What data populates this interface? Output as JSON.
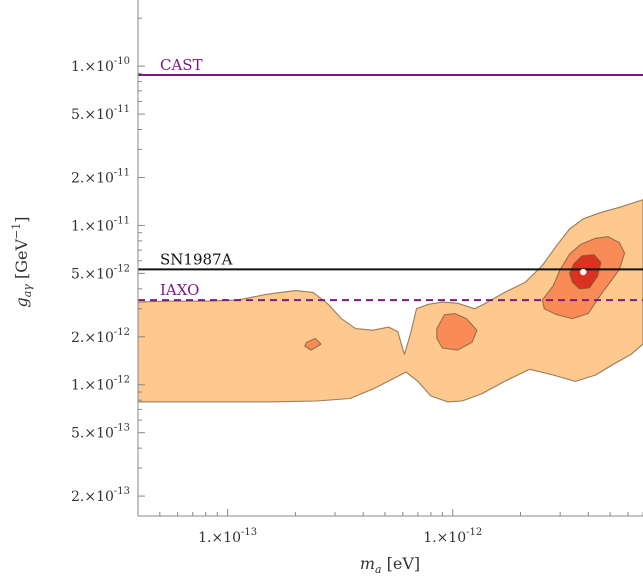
{
  "chart_data": {
    "type": "contour",
    "xlabel": "m_a [eV]",
    "ylabel": "g_aγ [GeV^-1]",
    "x_scale": "log",
    "y_scale": "log",
    "xlim": [
      4e-14,
      7e-12
    ],
    "ylim": [
      1.5e-13,
      2.6e-10
    ],
    "x_ticks": [
      {
        "value": 1e-13,
        "mantissa": "1.",
        "exponent": "-13"
      },
      {
        "value": 1e-12,
        "mantissa": "1.",
        "exponent": "-12"
      }
    ],
    "y_ticks": [
      {
        "value": 1e-10,
        "mantissa": "1.",
        "exponent": "-10"
      },
      {
        "value": 5e-11,
        "mantissa": "5.",
        "exponent": "-11"
      },
      {
        "value": 2e-11,
        "mantissa": "2.",
        "exponent": "-11"
      },
      {
        "value": 1e-11,
        "mantissa": "1.",
        "exponent": "-11"
      },
      {
        "value": 5e-12,
        "mantissa": "5.",
        "exponent": "-12"
      },
      {
        "value": 2e-12,
        "mantissa": "2.",
        "exponent": "-12"
      },
      {
        "value": 1e-12,
        "mantissa": "1.",
        "exponent": "-12"
      },
      {
        "value": 5e-13,
        "mantissa": "5.",
        "exponent": "-13"
      },
      {
        "value": 2e-13,
        "mantissa": "2.",
        "exponent": "-13"
      }
    ],
    "reference_lines": [
      {
        "label": "CAST",
        "y": 8.8e-11,
        "color": "#7b1a80",
        "style": "solid"
      },
      {
        "label": "SN1987A",
        "y": 5.3e-12,
        "color": "#111111",
        "style": "solid"
      },
      {
        "label": "IAXO",
        "y": 3.4e-12,
        "color": "#7b1a80",
        "style": "dashed"
      }
    ],
    "regions": [
      {
        "level": "outer",
        "color": "#fdc98f",
        "points": [
          [
            4e-14,
            3.3e-12
          ],
          [
            5.5e-14,
            3.35e-12
          ],
          [
            8e-14,
            3.35e-12
          ],
          [
            1.1e-13,
            3.4e-12
          ],
          [
            1.5e-13,
            3.7e-12
          ],
          [
            2e-13,
            3.9e-12
          ],
          [
            2.4e-13,
            3.8e-12
          ],
          [
            2.8e-13,
            3.2e-12
          ],
          [
            3.2e-13,
            2.6e-12
          ],
          [
            3.7e-13,
            2.25e-12
          ],
          [
            4.4e-13,
            2.2e-12
          ],
          [
            5.2e-13,
            2.3e-12
          ],
          [
            5.7e-13,
            2.15e-12
          ],
          [
            6.1e-13,
            1.55e-12
          ],
          [
            6.5e-13,
            2.1e-12
          ],
          [
            6.9e-13,
            3e-12
          ],
          [
            7.8e-13,
            3.2e-12
          ],
          [
            9e-13,
            3.3e-12
          ],
          [
            1.05e-12,
            3.25e-12
          ],
          [
            1.25e-12,
            3e-12
          ],
          [
            1.4e-12,
            3.25e-12
          ],
          [
            1.7e-12,
            3.8e-12
          ],
          [
            2.1e-12,
            4.4e-12
          ],
          [
            2.5e-12,
            5.6e-12
          ],
          [
            2.9e-12,
            7.5e-12
          ],
          [
            3.3e-12,
            9.5e-12
          ],
          [
            3.8e-12,
            1.1e-11
          ],
          [
            4.5e-12,
            1.2e-11
          ],
          [
            5.5e-12,
            1.3e-11
          ],
          [
            7e-12,
            1.45e-11
          ],
          [
            7e-12,
            1.8e-12
          ],
          [
            6.2e-12,
            1.55e-12
          ],
          [
            5.2e-12,
            1.35e-12
          ],
          [
            4.3e-12,
            1.15e-12
          ],
          [
            3.5e-12,
            1.05e-12
          ],
          [
            2.8e-12,
            1.15e-12
          ],
          [
            2.2e-12,
            1.25e-12
          ],
          [
            1.7e-12,
            1.05e-12
          ],
          [
            1.35e-12,
            8.8e-13
          ],
          [
            1.1e-12,
            7.9e-13
          ],
          [
            9.5e-13,
            7.8e-13
          ],
          [
            8e-13,
            8.5e-13
          ],
          [
            7e-13,
            1.05e-12
          ],
          [
            6.2e-13,
            1.2e-12
          ],
          [
            5.5e-13,
            1.1e-12
          ],
          [
            4.5e-13,
            9.5e-13
          ],
          [
            3.5e-13,
            8.2e-13
          ],
          [
            2.5e-13,
            7.9e-13
          ],
          [
            1.5e-13,
            7.8e-13
          ],
          [
            8e-14,
            7.8e-13
          ],
          [
            4e-14,
            7.8e-13
          ]
        ]
      },
      {
        "level": "middle",
        "color": "#f98c56",
        "points": [
          [
            2.25e-13,
            1.85e-12
          ],
          [
            2.45e-13,
            1.95e-12
          ],
          [
            2.6e-13,
            1.8e-12
          ],
          [
            2.35e-13,
            1.65e-12
          ],
          [
            2.2e-13,
            1.75e-12
          ]
        ]
      },
      {
        "level": "middle",
        "color": "#f98c56",
        "points": [
          [
            8.5e-13,
            2.25e-12
          ],
          [
            9.2e-13,
            2.75e-12
          ],
          [
            1.02e-12,
            2.8e-12
          ],
          [
            1.15e-12,
            2.6e-12
          ],
          [
            1.28e-12,
            2.2e-12
          ],
          [
            1.22e-12,
            1.85e-12
          ],
          [
            1.05e-12,
            1.65e-12
          ],
          [
            9e-13,
            1.7e-12
          ],
          [
            8.5e-13,
            1.95e-12
          ]
        ]
      },
      {
        "level": "middle",
        "color": "#f98c56",
        "points": [
          [
            2.5e-12,
            3.4e-12
          ],
          [
            2.8e-12,
            4.2e-12
          ],
          [
            3e-12,
            5.3e-12
          ],
          [
            3.3e-12,
            6.6e-12
          ],
          [
            3.7e-12,
            7.6e-12
          ],
          [
            4.3e-12,
            8.3e-12
          ],
          [
            4.9e-12,
            8.5e-12
          ],
          [
            5.5e-12,
            7.8e-12
          ],
          [
            5.8e-12,
            6.7e-12
          ],
          [
            5.5e-12,
            5.3e-12
          ],
          [
            5e-12,
            4.4e-12
          ],
          [
            4.5e-12,
            3.6e-12
          ],
          [
            4e-12,
            2.8e-12
          ],
          [
            3.4e-12,
            2.6e-12
          ],
          [
            2.9e-12,
            2.75e-12
          ],
          [
            2.55e-12,
            3e-12
          ]
        ]
      },
      {
        "level": "inner",
        "color": "#d9331f",
        "points": [
          [
            3.3e-12,
            5e-12
          ],
          [
            3.45e-12,
            5.75e-12
          ],
          [
            3.75e-12,
            6.45e-12
          ],
          [
            4.25e-12,
            6.55e-12
          ],
          [
            4.55e-12,
            5.85e-12
          ],
          [
            4.4e-12,
            4.8e-12
          ],
          [
            4.05e-12,
            4.05e-12
          ],
          [
            3.65e-12,
            4e-12
          ],
          [
            3.4e-12,
            4.4e-12
          ]
        ]
      }
    ],
    "best_fit": {
      "x": 3.8e-12,
      "y": 5.1e-12,
      "color": "#ffffff"
    }
  }
}
